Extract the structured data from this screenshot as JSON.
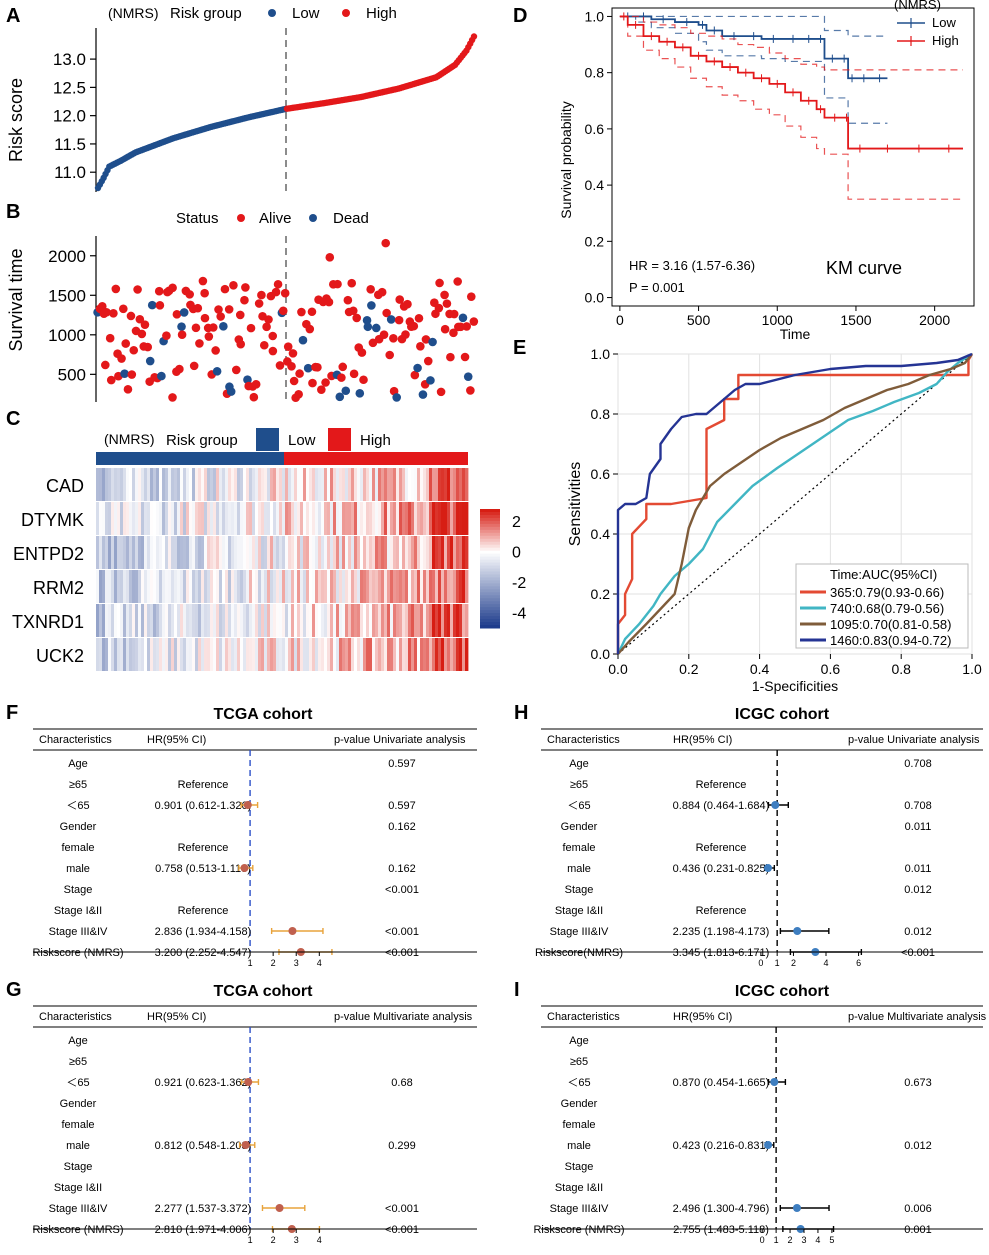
{
  "panel_labels": {
    "A": "A",
    "B": "B",
    "C": "C",
    "D": "D",
    "E": "E",
    "F": "F",
    "G": "G",
    "H": "H",
    "I": "I"
  },
  "colors": {
    "low": "#1f4e8c",
    "high": "#e3181a",
    "roc365": "#e34a33",
    "roc740": "#41b6c4",
    "roc1095": "#7f5c3a",
    "roc1460": "#253494",
    "forest_tcga": "#2b4fc7",
    "forest_icgc": "#000000",
    "ci_tcga": "#e8a33b",
    "pt_tcga": "#c0604e",
    "pt_icgc": "#3e7ec0"
  },
  "legend": {
    "nmrs": "(NMRS)",
    "risk_group": "Risk group",
    "low": "Low",
    "high": "High",
    "status": "Status",
    "alive": "Alive",
    "dead": "Dead"
  },
  "chart_data": [
    {
      "id": "A",
      "type": "scatter",
      "title": "",
      "xlabel": "",
      "ylabel": "Risk score",
      "ylim": [
        10.65,
        13.55
      ],
      "yticks": [
        "11.0",
        "11.5",
        "12.0",
        "12.5",
        "13.0"
      ],
      "ytick_values": [
        11.0,
        11.5,
        12.0,
        12.5,
        13.0
      ],
      "n_low": 100,
      "n_high": 100,
      "curve_points": [
        [
          0,
          10.72
        ],
        [
          3,
          10.9
        ],
        [
          6,
          11.1
        ],
        [
          12,
          11.2
        ],
        [
          20,
          11.35
        ],
        [
          40,
          11.6
        ],
        [
          60,
          11.8
        ],
        [
          80,
          11.97
        ],
        [
          100,
          12.12
        ],
        [
          120,
          12.22
        ],
        [
          140,
          12.33
        ],
        [
          160,
          12.48
        ],
        [
          180,
          12.68
        ],
        [
          190,
          12.9
        ],
        [
          196,
          13.15
        ],
        [
          200,
          13.4
        ]
      ],
      "cutoff_index": 100
    },
    {
      "id": "B",
      "type": "scatter",
      "ylabel": "Survival time",
      "ylim": [
        150,
        2250
      ],
      "yticks": [
        "500",
        "1000",
        "1500",
        "2000"
      ],
      "ytick_values": [
        500,
        1000,
        1500,
        2000
      ],
      "cutoff_index": 100
    },
    {
      "id": "C",
      "type": "heatmap",
      "genes": [
        "CAD",
        "DTYMK",
        "ENTPD2",
        "RRM2",
        "TXNRD1",
        "UCK2"
      ],
      "colorbar_ticks": [
        "2",
        "0",
        "-2",
        "-4"
      ],
      "colorbar_values": [
        2,
        0,
        -2,
        -4
      ],
      "range": [
        -5,
        2.8
      ]
    },
    {
      "id": "D",
      "type": "line",
      "title": "KM curve",
      "xlabel": "Time",
      "ylabel": "Survival probability",
      "xlim": [
        -50,
        2250
      ],
      "ylim": [
        -0.03,
        1.03
      ],
      "xticks": [
        "0",
        "500",
        "1000",
        "1500",
        "2000"
      ],
      "xtick_values": [
        0,
        500,
        1000,
        1500,
        2000
      ],
      "yticks": [
        "0.0",
        "0.2",
        "0.4",
        "0.6",
        "0.8",
        "1.0"
      ],
      "ytick_values": [
        0,
        0.2,
        0.4,
        0.6,
        0.8,
        1.0
      ],
      "legend_title": "(NMRS)",
      "annotation_hr": "HR = 3.16 (1.57-6.36)",
      "annotation_p": "P = 0.001",
      "series": [
        {
          "name": "Low",
          "x": [
            0,
            100,
            200,
            350,
            500,
            550,
            650,
            800,
            900,
            1050,
            1150,
            1250,
            1300,
            1400,
            1450,
            1500,
            1600,
            1700
          ],
          "y": [
            1.0,
            1.0,
            0.99,
            0.98,
            0.97,
            0.95,
            0.93,
            0.93,
            0.92,
            0.92,
            0.92,
            0.92,
            0.85,
            0.85,
            0.78,
            0.78,
            0.78,
            0.78
          ],
          "upper": [
            1.0,
            1.0,
            1.0,
            1.0,
            1.0,
            1.0,
            1.0,
            1.0,
            1.0,
            1.0,
            1.0,
            1.0,
            0.95,
            0.95,
            0.93,
            0.93,
            0.93,
            0.93
          ],
          "lower": [
            1.0,
            0.98,
            0.96,
            0.94,
            0.91,
            0.88,
            0.86,
            0.86,
            0.85,
            0.84,
            0.84,
            0.84,
            0.71,
            0.71,
            0.62,
            0.62,
            0.62,
            0.62
          ]
        },
        {
          "name": "High",
          "x": [
            0,
            50,
            150,
            250,
            350,
            450,
            550,
            650,
            750,
            850,
            950,
            1050,
            1150,
            1250,
            1300,
            1430,
            1450,
            1600,
            1800,
            2000,
            2180
          ],
          "y": [
            1.0,
            0.97,
            0.93,
            0.91,
            0.89,
            0.86,
            0.84,
            0.82,
            0.8,
            0.78,
            0.76,
            0.73,
            0.7,
            0.67,
            0.64,
            0.64,
            0.53,
            0.53,
            0.53,
            0.53,
            0.53
          ],
          "upper": [
            1.0,
            1.0,
            0.98,
            0.97,
            0.96,
            0.94,
            0.93,
            0.92,
            0.9,
            0.89,
            0.87,
            0.85,
            0.83,
            0.82,
            0.81,
            0.81,
            0.81,
            0.81,
            0.81,
            0.81,
            0.81
          ],
          "lower": [
            1.0,
            0.93,
            0.88,
            0.85,
            0.82,
            0.78,
            0.75,
            0.72,
            0.7,
            0.67,
            0.65,
            0.61,
            0.57,
            0.53,
            0.51,
            0.51,
            0.35,
            0.35,
            0.35,
            0.35,
            0.35
          ]
        }
      ]
    },
    {
      "id": "E",
      "type": "line",
      "xlabel": "1-Specificities",
      "ylabel": "Sensitivities",
      "xlim": [
        0,
        1
      ],
      "ylim": [
        0,
        1
      ],
      "xticks": [
        "0.0",
        "0.2",
        "0.4",
        "0.6",
        "0.8",
        "1.0"
      ],
      "yticks": [
        "0.0",
        "0.2",
        "0.4",
        "0.6",
        "0.8",
        "1.0"
      ],
      "tick_values": [
        0,
        0.2,
        0.4,
        0.6,
        0.8,
        1.0
      ],
      "legend_title": "Time:AUC(95%CI)",
      "series": [
        {
          "name": "365:0.79(0.93-0.66)",
          "x": [
            0,
            0,
            0.02,
            0.02,
            0.04,
            0.04,
            0.08,
            0.08,
            0.15,
            0.15,
            0.25,
            0.25,
            0.3,
            0.3,
            0.34,
            0.34,
            0.45,
            0.65,
            0.85,
            0.95,
            0.99,
            0.99,
            1.0
          ],
          "y": [
            0,
            0.1,
            0.13,
            0.2,
            0.25,
            0.4,
            0.45,
            0.5,
            0.5,
            0.5,
            0.52,
            0.75,
            0.78,
            0.85,
            0.85,
            0.93,
            0.93,
            0.93,
            0.93,
            0.93,
            0.93,
            0.98,
            1.0
          ]
        },
        {
          "name": "740:0.68(0.79-0.56)",
          "x": [
            0,
            0.02,
            0.06,
            0.1,
            0.12,
            0.16,
            0.2,
            0.24,
            0.28,
            0.33,
            0.38,
            0.45,
            0.5,
            0.55,
            0.6,
            0.65,
            0.72,
            0.78,
            0.85,
            0.9,
            0.93,
            0.96,
            1.0
          ],
          "y": [
            0,
            0.05,
            0.1,
            0.16,
            0.2,
            0.26,
            0.3,
            0.35,
            0.44,
            0.5,
            0.56,
            0.62,
            0.66,
            0.7,
            0.74,
            0.78,
            0.81,
            0.84,
            0.87,
            0.9,
            0.94,
            0.97,
            1.0
          ]
        },
        {
          "name": "1095:0.70(0.81-0.58)",
          "x": [
            0,
            0.03,
            0.08,
            0.12,
            0.16,
            0.18,
            0.2,
            0.22,
            0.26,
            0.3,
            0.35,
            0.4,
            0.46,
            0.52,
            0.58,
            0.64,
            0.7,
            0.76,
            0.82,
            0.88,
            0.94,
            0.98,
            1.0
          ],
          "y": [
            0,
            0.04,
            0.1,
            0.15,
            0.2,
            0.3,
            0.42,
            0.48,
            0.56,
            0.6,
            0.64,
            0.68,
            0.72,
            0.75,
            0.78,
            0.82,
            0.85,
            0.88,
            0.9,
            0.93,
            0.95,
            0.97,
            1.0
          ]
        },
        {
          "name": "1460:0.83(0.94-0.72)",
          "x": [
            0,
            0,
            0.02,
            0.05,
            0.08,
            0.09,
            0.12,
            0.12,
            0.15,
            0.18,
            0.22,
            0.25,
            0.3,
            0.33,
            0.36,
            0.4,
            0.5,
            0.6,
            0.7,
            0.8,
            0.9,
            0.96,
            1.0
          ],
          "y": [
            0,
            0.48,
            0.5,
            0.5,
            0.52,
            0.6,
            0.65,
            0.7,
            0.75,
            0.79,
            0.8,
            0.8,
            0.85,
            0.88,
            0.9,
            0.9,
            0.93,
            0.95,
            0.96,
            0.96,
            0.97,
            0.98,
            1.0
          ]
        }
      ]
    },
    {
      "id": "F",
      "type": "table",
      "title": "TCGA cohort",
      "headers": [
        "Characteristics",
        "HR(95% CI)",
        "p-value Univariate analysis"
      ],
      "axis_ticks": [
        "1",
        "2",
        "3",
        "4"
      ],
      "axis_values": [
        1,
        2,
        3,
        4
      ],
      "axis_range": [
        0,
        5.2
      ],
      "ref_line": 1,
      "rows": [
        {
          "label": "Age",
          "hr": "",
          "p": "0.597",
          "est": null,
          "lo": null,
          "hi": null
        },
        {
          "label": "≥65",
          "hr": "Reference",
          "p": "",
          "est": null,
          "lo": null,
          "hi": null
        },
        {
          "label": "＜65",
          "hr": "0.901 (0.612-1.326)",
          "p": "0.597",
          "est": 0.901,
          "lo": 0.612,
          "hi": 1.326
        },
        {
          "label": "Gender",
          "hr": "",
          "p": "0.162",
          "est": null,
          "lo": null,
          "hi": null
        },
        {
          "label": "female",
          "hr": "Reference",
          "p": "",
          "est": null,
          "lo": null,
          "hi": null
        },
        {
          "label": "male",
          "hr": "0.758 (0.513-1.118)",
          "p": "0.162",
          "est": 0.758,
          "lo": 0.513,
          "hi": 1.118
        },
        {
          "label": "Stage",
          "hr": "",
          "p": "<0.001",
          "est": null,
          "lo": null,
          "hi": null
        },
        {
          "label": "Stage I&II",
          "hr": "Reference",
          "p": "",
          "est": null,
          "lo": null,
          "hi": null
        },
        {
          "label": "Stage III&IV",
          "hr": "2.836 (1.934-4.158)",
          "p": "<0.001",
          "est": 2.836,
          "lo": 1.934,
          "hi": 4.158
        },
        {
          "label": "Riskscore (NMRS)",
          "hr": "3.200 (2.252-4.547)",
          "p": "<0.001",
          "est": 3.2,
          "lo": 2.252,
          "hi": 4.547
        }
      ]
    },
    {
      "id": "G",
      "type": "table",
      "title": "TCGA cohort",
      "headers": [
        "Characteristics",
        "HR(95% CI)",
        "p-value Multivariate analysis"
      ],
      "axis_ticks": [
        "1",
        "2",
        "3",
        "4"
      ],
      "axis_values": [
        1,
        2,
        3,
        4
      ],
      "axis_range": [
        0,
        5.2
      ],
      "ref_line": 1,
      "rows": [
        {
          "label": "Age",
          "hr": "",
          "p": "",
          "est": null,
          "lo": null,
          "hi": null
        },
        {
          "label": "≥65",
          "hr": "",
          "p": "",
          "est": null,
          "lo": null,
          "hi": null
        },
        {
          "label": "＜65",
          "hr": "0.921 (0.623-1.362)",
          "p": "0.68",
          "est": 0.921,
          "lo": 0.623,
          "hi": 1.362
        },
        {
          "label": "Gender",
          "hr": "",
          "p": "",
          "est": null,
          "lo": null,
          "hi": null
        },
        {
          "label": "female",
          "hr": "",
          "p": "",
          "est": null,
          "lo": null,
          "hi": null
        },
        {
          "label": "male",
          "hr": "0.812 (0.548-1.203)",
          "p": "0.299",
          "est": 0.812,
          "lo": 0.548,
          "hi": 1.203
        },
        {
          "label": "Stage",
          "hr": "",
          "p": "",
          "est": null,
          "lo": null,
          "hi": null
        },
        {
          "label": "Stage I&II",
          "hr": "",
          "p": "",
          "est": null,
          "lo": null,
          "hi": null
        },
        {
          "label": "Stage III&IV",
          "hr": "2.277 (1.537-3.372)",
          "p": "<0.001",
          "est": 2.277,
          "lo": 1.537,
          "hi": 3.372
        },
        {
          "label": "Riskscore (NMRS)",
          "hr": "2.810 (1.971-4.006)",
          "p": "<0.001",
          "est": 2.81,
          "lo": 1.971,
          "hi": 4.006
        }
      ]
    },
    {
      "id": "H",
      "type": "table",
      "title": "ICGC cohort",
      "headers": [
        "Characteristics",
        "HR(95% CI)",
        "p-value Univariate analysis"
      ],
      "axis_ticks": [
        "0",
        "1",
        "2",
        "4",
        "6"
      ],
      "axis_values": [
        0,
        1,
        2,
        4,
        6
      ],
      "axis_range": [
        -0.3,
        7.5
      ],
      "ref_line": 1,
      "rows": [
        {
          "label": "Age",
          "hr": "",
          "p": "0.708",
          "est": null,
          "lo": null,
          "hi": null
        },
        {
          "label": "≥65",
          "hr": "Reference",
          "p": "",
          "est": null,
          "lo": null,
          "hi": null
        },
        {
          "label": "＜65",
          "hr": "0.884 (0.464-1.684)",
          "p": "0.708",
          "est": 0.884,
          "lo": 0.464,
          "hi": 1.684
        },
        {
          "label": "Gender",
          "hr": "",
          "p": "0.011",
          "est": null,
          "lo": null,
          "hi": null
        },
        {
          "label": "female",
          "hr": "Reference",
          "p": "",
          "est": null,
          "lo": null,
          "hi": null
        },
        {
          "label": "male",
          "hr": "0.436 (0.231-0.825)",
          "p": "0.011",
          "est": 0.436,
          "lo": 0.231,
          "hi": 0.825
        },
        {
          "label": "Stage",
          "hr": "",
          "p": "0.012",
          "est": null,
          "lo": null,
          "hi": null
        },
        {
          "label": "Stage I&II",
          "hr": "Reference",
          "p": "",
          "est": null,
          "lo": null,
          "hi": null
        },
        {
          "label": "Stage III&IV",
          "hr": "2.235 (1.198-4.173)",
          "p": "0.012",
          "est": 2.235,
          "lo": 1.198,
          "hi": 4.173
        },
        {
          "label": "Riskscore(NMRS)",
          "hr": "3.345 (1.813-6.171)",
          "p": "<0.001",
          "est": 3.345,
          "lo": 1.813,
          "hi": 6.171
        }
      ]
    },
    {
      "id": "I",
      "type": "table",
      "title": "ICGC cohort",
      "headers": [
        "Characteristics",
        "HR(95% CI)",
        "p-value Multivariate analysis"
      ],
      "axis_ticks": [
        "0",
        "1",
        "2",
        "3",
        "4",
        "5"
      ],
      "axis_values": [
        0,
        1,
        2,
        3,
        4,
        5
      ],
      "axis_range": [
        -0.3,
        6.3
      ],
      "ref_line": 1,
      "rows": [
        {
          "label": "Age",
          "hr": "",
          "p": "",
          "est": null,
          "lo": null,
          "hi": null
        },
        {
          "label": "≥65",
          "hr": "",
          "p": "",
          "est": null,
          "lo": null,
          "hi": null
        },
        {
          "label": "＜65",
          "hr": "0.870 (0.454-1.665)",
          "p": "0.673",
          "est": 0.87,
          "lo": 0.454,
          "hi": 1.665
        },
        {
          "label": "Gender",
          "hr": "",
          "p": "",
          "est": null,
          "lo": null,
          "hi": null
        },
        {
          "label": "female",
          "hr": "",
          "p": "",
          "est": null,
          "lo": null,
          "hi": null
        },
        {
          "label": "male",
          "hr": "0.423 (0.216-0.831)",
          "p": "0.012",
          "est": 0.423,
          "lo": 0.216,
          "hi": 0.831
        },
        {
          "label": "Stage",
          "hr": "",
          "p": "",
          "est": null,
          "lo": null,
          "hi": null
        },
        {
          "label": "Stage I&II",
          "hr": "",
          "p": "",
          "est": null,
          "lo": null,
          "hi": null
        },
        {
          "label": "Stage III&IV",
          "hr": "2.496 (1.300-4.796)",
          "p": "0.006",
          "est": 2.496,
          "lo": 1.3,
          "hi": 4.796
        },
        {
          "label": "Riskscore (NMRS)",
          "hr": "2.755 (1.483-5.118)",
          "p": "0.001",
          "est": 2.755,
          "lo": 1.483,
          "hi": 5.118
        }
      ]
    }
  ]
}
